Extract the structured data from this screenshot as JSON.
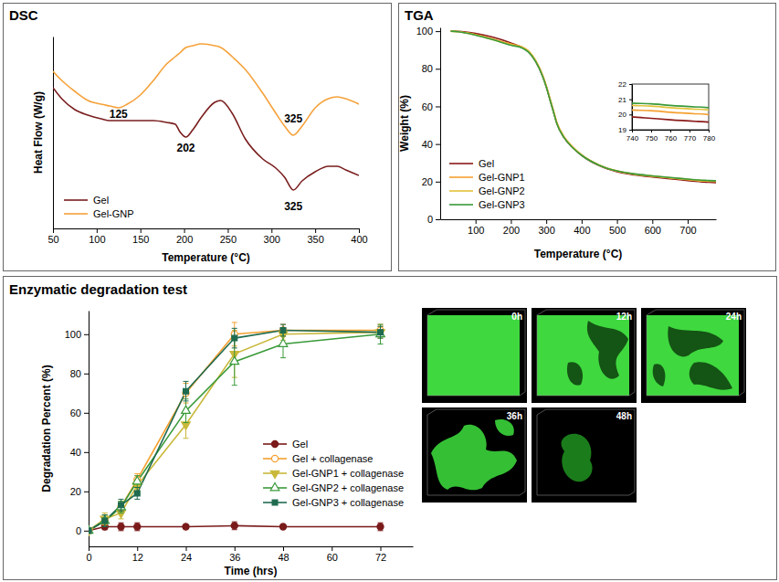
{
  "chart_data": [
    {
      "type": "line",
      "title": "DSC",
      "x_label": "Temperature (°C)",
      "y_label": "Heat Flow (W/g)",
      "x": [
        50,
        60,
        75,
        90,
        105,
        115,
        125,
        135,
        150,
        165,
        180,
        190,
        195,
        202,
        210,
        220,
        235,
        242,
        255,
        270,
        290,
        305,
        315,
        325,
        335,
        350,
        365,
        375,
        385,
        400
      ],
      "xlim": [
        50,
        400
      ],
      "xticks": [
        50,
        100,
        150,
        200,
        250,
        300,
        350,
        400
      ],
      "ylim": [
        0,
        1.05
      ],
      "tick_labels": "x",
      "legend": "lower left",
      "series": [
        {
          "name": "Gel",
          "color": "#7a1e1e",
          "values": [
            0.77,
            0.71,
            0.65,
            0.62,
            0.6,
            0.59,
            0.59,
            0.59,
            0.59,
            0.59,
            0.58,
            0.57,
            0.53,
            0.5,
            0.54,
            0.61,
            0.69,
            0.7,
            0.63,
            0.49,
            0.38,
            0.33,
            0.28,
            0.21,
            0.26,
            0.31,
            0.34,
            0.34,
            0.32,
            0.29
          ]
        },
        {
          "name": "Gel-GNP",
          "color": "#f5a23b",
          "values": [
            0.86,
            0.81,
            0.75,
            0.7,
            0.68,
            0.67,
            0.66,
            0.68,
            0.73,
            0.81,
            0.9,
            0.94,
            0.96,
            0.99,
            1.0,
            1.01,
            1.0,
            0.99,
            0.94,
            0.87,
            0.74,
            0.63,
            0.56,
            0.51,
            0.56,
            0.66,
            0.71,
            0.72,
            0.71,
            0.68
          ]
        }
      ],
      "annotations": [
        {
          "text": "125",
          "x": 125,
          "y": 0.625
        },
        {
          "text": "202",
          "x": 202,
          "y": 0.44
        },
        {
          "text": "325",
          "x": 325,
          "y": 0.6
        },
        {
          "text": "325",
          "x": 325,
          "y": 0.12
        }
      ]
    },
    {
      "type": "line",
      "title": "TGA",
      "x_label": "Temperature (°C)",
      "y_label": "Weight (%)",
      "x": [
        30,
        50,
        100,
        150,
        200,
        230,
        250,
        270,
        290,
        300,
        310,
        320,
        330,
        350,
        375,
        400,
        450,
        500,
        550,
        600,
        650,
        700,
        740,
        750,
        760,
        780
      ],
      "xlim": [
        0,
        780
      ],
      "xticks": [
        100,
        200,
        300,
        400,
        500,
        600,
        700
      ],
      "ylim": [
        0,
        102
      ],
      "yticks": [
        0,
        20,
        40,
        60,
        80,
        100
      ],
      "legend": "lower left",
      "series": [
        {
          "name": "Gel",
          "color": "#8b1a1a",
          "values": [
            100,
            99.9,
            98.8,
            96.8,
            93.8,
            91.5,
            89,
            84,
            76,
            70.5,
            64,
            57.5,
            51,
            43.5,
            38,
            34,
            28.5,
            25.3,
            23.6,
            22.5,
            21.5,
            20.6,
            19.85,
            19.75,
            19.65,
            19.5
          ]
        },
        {
          "name": "Gel-GNP1",
          "color": "#f5a030",
          "values": [
            100,
            99.8,
            98.2,
            95.8,
            93.2,
            91.8,
            89.5,
            84.5,
            76.5,
            71,
            64.5,
            58,
            51.5,
            44,
            38.5,
            34.3,
            28.8,
            25.6,
            23.9,
            22.8,
            21.9,
            21,
            20.3,
            20.25,
            20.15,
            20
          ]
        },
        {
          "name": "Gel-GNP2",
          "color": "#e3c23a",
          "values": [
            100,
            99.7,
            98,
            95.5,
            92.8,
            91.5,
            89.3,
            84.3,
            76.3,
            70.8,
            64.3,
            57.8,
            51.3,
            43.8,
            38.3,
            34.2,
            28.8,
            25.7,
            24,
            23,
            22.1,
            21.3,
            20.6,
            20.55,
            20.45,
            20.3
          ]
        },
        {
          "name": "Gel-GNP3",
          "color": "#3a9a3a",
          "values": [
            100,
            99.7,
            97.9,
            95.4,
            92.5,
            91.2,
            88.8,
            83.8,
            75.8,
            70.3,
            63.8,
            57.3,
            50.8,
            43.5,
            38,
            34,
            28.7,
            25.7,
            24.1,
            23.1,
            22.2,
            21.4,
            20.75,
            20.7,
            20.6,
            20.45
          ]
        }
      ],
      "inset": {
        "xlim": [
          740,
          780
        ],
        "xticks": [
          740,
          750,
          760,
          770,
          780
        ],
        "ylim": [
          19,
          22
        ],
        "yticks": [
          19,
          20,
          21,
          22
        ]
      }
    },
    {
      "type": "line",
      "title": "Enzymatic degradation test",
      "x_label": "Time (hrs)",
      "y_label": "Degradation Percent (%)",
      "x": [
        0,
        4,
        8,
        12,
        24,
        36,
        48,
        72
      ],
      "xlim": [
        0,
        80
      ],
      "xticks": [
        0,
        12,
        24,
        36,
        48,
        60,
        72
      ],
      "ylim": [
        -8,
        112
      ],
      "yticks": [
        0,
        20,
        40,
        60,
        80,
        100
      ],
      "legend": "lower right",
      "series": [
        {
          "name": "Gel",
          "color": "#7a1a1a",
          "marker": "circle",
          "values": [
            0,
            2,
            2,
            2,
            2,
            2.5,
            2,
            2
          ],
          "errors": [
            0,
            1.5,
            2,
            2,
            1,
            2,
            1,
            2
          ]
        },
        {
          "name": "Gel + collagenase",
          "color": "#f5a030",
          "marker": "circle-open",
          "values": [
            0,
            5,
            12,
            26,
            70,
            100,
            102,
            102
          ],
          "errors": [
            0,
            3,
            3,
            3,
            5,
            6,
            3,
            3
          ]
        },
        {
          "name": "Gel-GNP1 + collagenase",
          "color": "#c9b83a",
          "marker": "triangle-down",
          "values": [
            0,
            6,
            9,
            23,
            54,
            90,
            100,
            101
          ],
          "errors": [
            0,
            3,
            3,
            3,
            7,
            12,
            3,
            3
          ]
        },
        {
          "name": "Gel-GNP2 + collagenase",
          "color": "#3a9a3a",
          "marker": "triangle-up-open",
          "values": [
            0,
            5,
            12,
            25,
            61,
            86,
            95,
            100
          ],
          "errors": [
            0,
            3,
            3,
            3,
            6,
            12,
            7,
            5
          ]
        },
        {
          "name": "Gel-GNP3 + collagenase",
          "color": "#1f6b4f",
          "marker": "square",
          "values": [
            0,
            5,
            13,
            19,
            71,
            98,
            102,
            101
          ],
          "errors": [
            0,
            3,
            3,
            3,
            5,
            5,
            3,
            3
          ]
        }
      ]
    }
  ],
  "micrographs": [
    "0h",
    "12h",
    "24h",
    "36h",
    "48h"
  ]
}
